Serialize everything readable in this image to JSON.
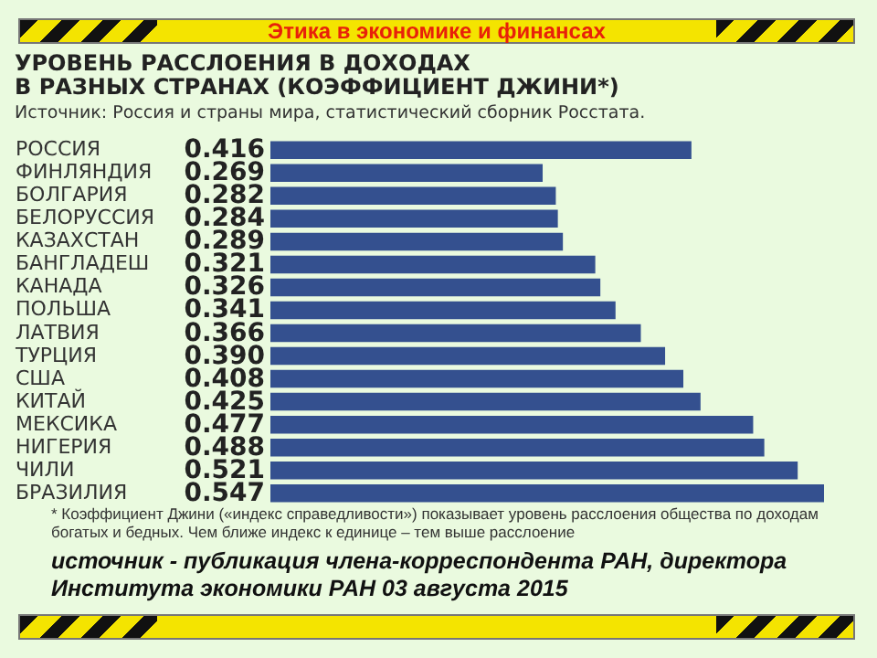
{
  "chart_data": {
    "type": "bar",
    "orientation": "horizontal",
    "title": [
      "УРОВЕНЬ РАССЛОЕНИЯ В ДОХОДАХ",
      "В РАЗНЫХ СТРАНАХ (КОЭФФИЦИЕНТ ДЖИНИ*)"
    ],
    "subtitle": "Источник: Россия и страны мира, статистический сборник Росстата.",
    "categories": [
      "РОССИЯ",
      "ФИНЛЯНДИЯ",
      "БОЛГАРИЯ",
      "БЕЛОРУССИЯ",
      "КАЗАХСТАН",
      "БАНГЛАДЕШ",
      "КАНАДА",
      "ПОЛЬША",
      "ЛАТВИЯ",
      "ТУРЦИЯ",
      "США",
      "КИТАЙ",
      "МЕКСИКА",
      "НИГЕРИЯ",
      "ЧИЛИ",
      "БРАЗИЛИЯ"
    ],
    "values": [
      0.416,
      0.269,
      0.282,
      0.284,
      0.289,
      0.321,
      0.326,
      0.341,
      0.366,
      0.39,
      0.408,
      0.425,
      0.477,
      0.488,
      0.521,
      0.547
    ],
    "value_labels": [
      "0.416",
      "0.269",
      "0.282",
      "0.284",
      "0.289",
      "0.321",
      "0.326",
      "0.341",
      "0.366",
      "0.390",
      "0.408",
      "0.425",
      "0.477",
      "0.488",
      "0.521",
      "0.547"
    ],
    "color": "#34508f",
    "annotations": [
      "Этика в экономике и финансах",
      "* Коэффициент Джини («индекс справедливости») показывает уровень расслоения общества по доходам богатых и бедных.  Чем ближе индекс к единице – тем выше расслоение",
      "источник - публикация члена-корреспондента РАН, директора Института экономики РАН 03 августа 2015"
    ],
    "grid": false
  }
}
